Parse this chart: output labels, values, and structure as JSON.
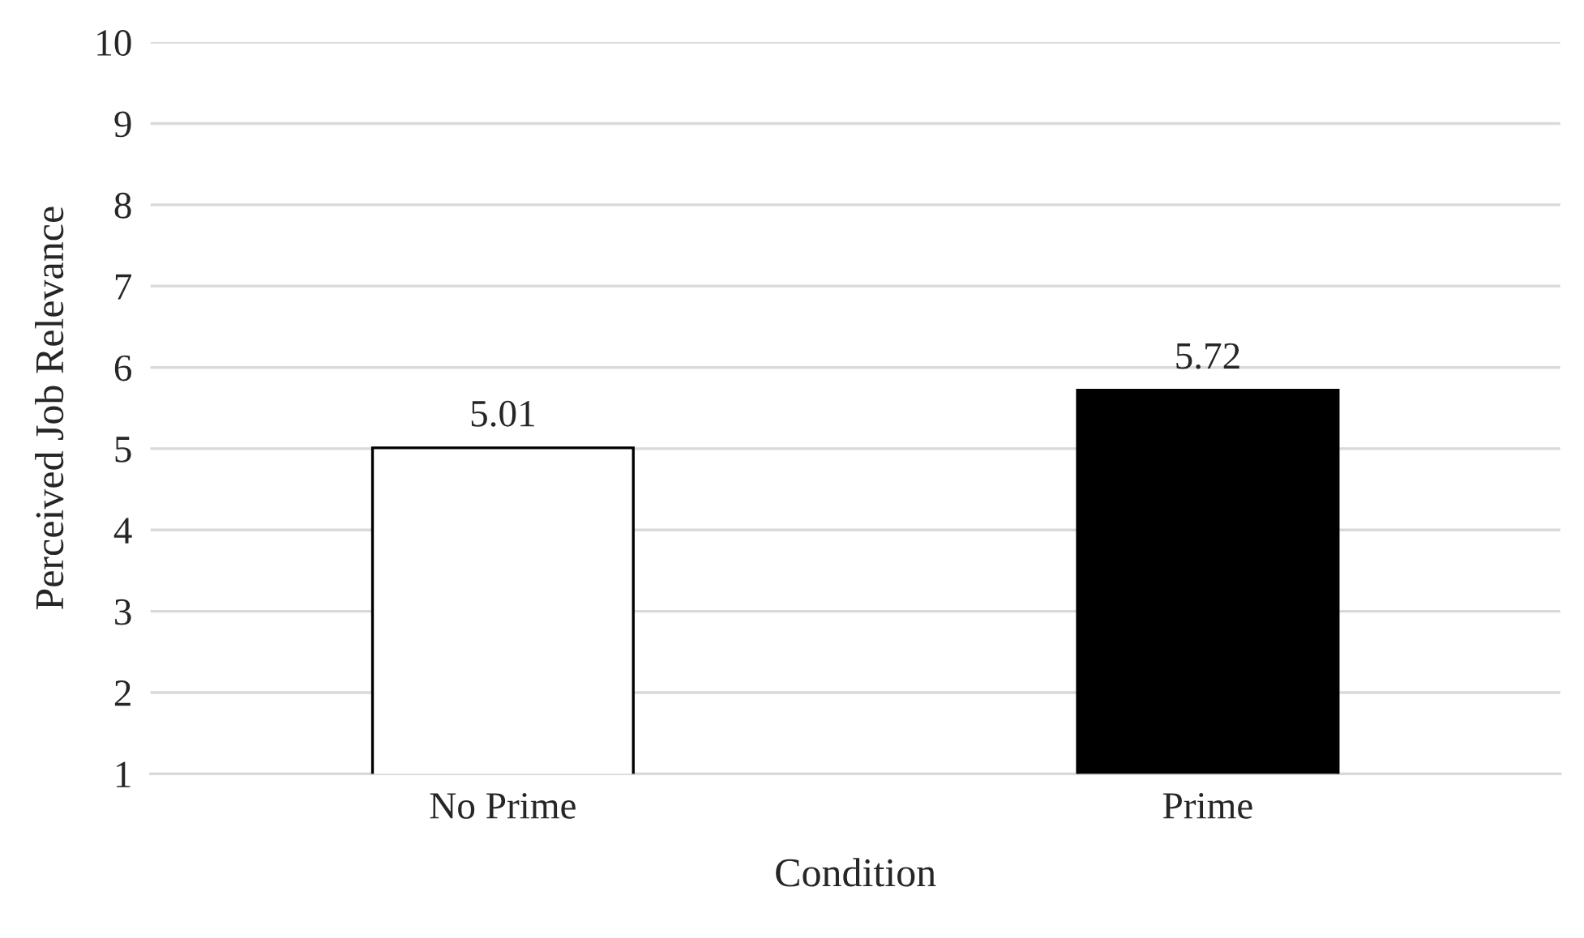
{
  "chart_data": {
    "type": "bar",
    "xlabel": "Condition",
    "ylabel": "Perceived Job Relevance",
    "categories": [
      "No Prime",
      "Prime"
    ],
    "values": [
      5.01,
      5.72
    ],
    "colors": [
      "#ffffff",
      "#000000"
    ],
    "ylim": [
      1,
      10
    ],
    "yticks": [
      1,
      2,
      3,
      4,
      5,
      6,
      7,
      8,
      9,
      10
    ],
    "grid": "y",
    "data_labels": true
  }
}
